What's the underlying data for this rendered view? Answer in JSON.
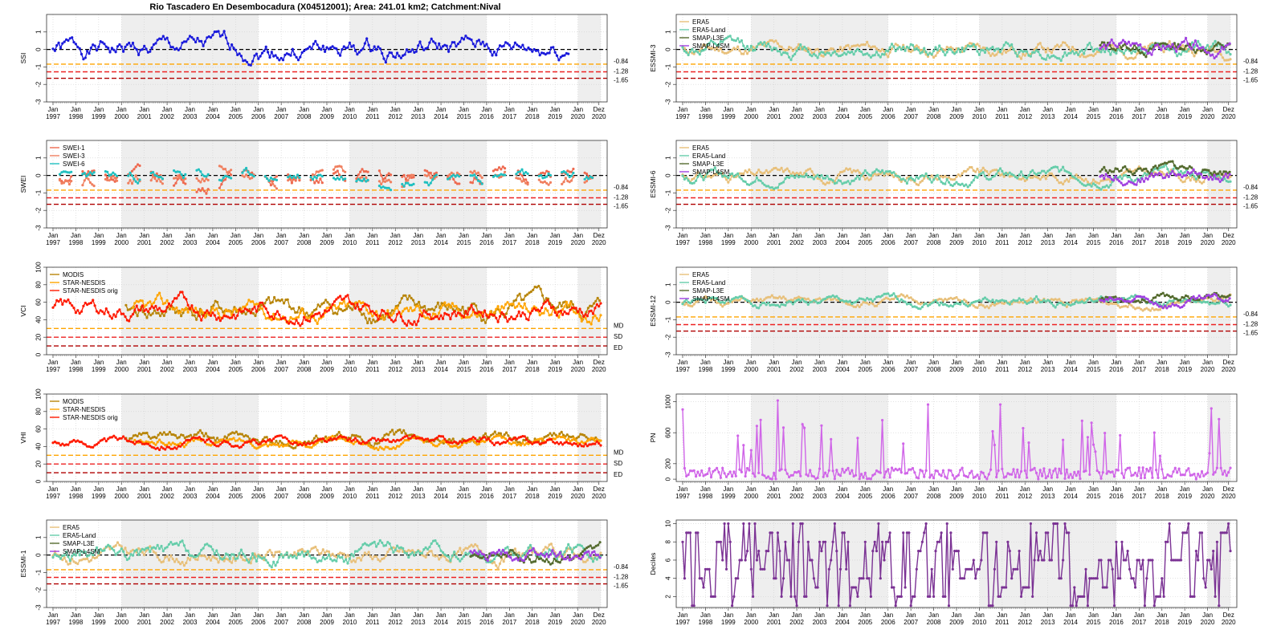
{
  "title": "Rio Tascadero En Desembocadura (X04512001); Area: 241.01 km2; Catchment:Nival",
  "colors": {
    "ssi": "#1a1adb",
    "swei1": "#ee6a50",
    "swei3": "#f08060",
    "swei6": "#20c0c0",
    "modis": "#b8860b",
    "star": "#ffa500",
    "star_orig": "#ff1a00",
    "era5": "#e8c07a",
    "era5land": "#66cdaa",
    "l3e": "#556b2f",
    "l4sm": "#a040e0",
    "pn": "#d065e8",
    "deciles": "#7b3294",
    "thr1": "#ffa500",
    "thr2": "#ee2222",
    "thr3": "#b00000",
    "zero": "#000000",
    "shade": "#eeeeee"
  },
  "x_axis": {
    "labels_top": [
      "Jan",
      "Jan",
      "Jan",
      "Jan",
      "Jan",
      "Jan",
      "Jan",
      "Jan",
      "Jan",
      "Jan",
      "Jan",
      "Jan",
      "Jan",
      "Jan",
      "Jan",
      "Jan",
      "Jan",
      "Jan",
      "Jan",
      "Jan",
      "Jan",
      "Jan",
      "Jan",
      "Jan",
      "Dez"
    ],
    "labels_bottom": [
      "1997",
      "1998",
      "1999",
      "2000",
      "2001",
      "2002",
      "2003",
      "2004",
      "2005",
      "2006",
      "2007",
      "2008",
      "2009",
      "2010",
      "2011",
      "2012",
      "2013",
      "2014",
      "2015",
      "2016",
      "2017",
      "2018",
      "2019",
      "2020",
      "2020"
    ],
    "shaded_periods": [
      [
        2000,
        2006
      ],
      [
        2010,
        2016
      ],
      [
        2020,
        2021
      ]
    ]
  },
  "chart_data": [
    {
      "id": "ssi",
      "type": "line",
      "ylabel": "SSI",
      "ylim": [
        -3,
        2
      ],
      "yticks": [
        -3,
        -2,
        -1,
        0,
        1
      ],
      "thresholds": [
        {
          "v": -0.84,
          "label": "-0.84"
        },
        {
          "v": -1.28,
          "label": "-1.28"
        },
        {
          "v": -1.65,
          "label": "-1.65"
        }
      ],
      "legend": [],
      "series": [
        {
          "key": "ssi",
          "color": "ssi",
          "start": 1997.0,
          "end": 2019.6,
          "mean": 0,
          "amp": 1.2,
          "seed": 1
        }
      ]
    },
    {
      "id": "esmi3",
      "type": "line",
      "ylabel": "ESSMI-3",
      "ylim": [
        -3,
        2
      ],
      "yticks": [
        -3,
        -2,
        -1,
        0,
        1
      ],
      "thresholds": [
        {
          "v": -0.84,
          "label": "-0.84"
        },
        {
          "v": -1.28,
          "label": "-1.28"
        },
        {
          "v": -1.65,
          "label": "-1.65"
        }
      ],
      "legend": [
        "ERA5",
        "ERA5-Land",
        "SMAP-L3E",
        "SMAP-L4SM"
      ],
      "series": [
        {
          "key": "era5",
          "color": "era5",
          "start": 1997.0,
          "end": 2021.0,
          "mean": 0,
          "amp": 0.8,
          "seed": 11
        },
        {
          "key": "era5land",
          "color": "era5land",
          "start": 1997.0,
          "end": 2021.0,
          "mean": 0,
          "amp": 0.9,
          "seed": 12
        },
        {
          "key": "l3e",
          "color": "l3e",
          "start": 2015.3,
          "end": 2021.0,
          "mean": 0.2,
          "amp": 0.8,
          "seed": 13
        },
        {
          "key": "l4sm",
          "color": "l4sm",
          "start": 2015.3,
          "end": 2021.0,
          "mean": 0.1,
          "amp": 0.9,
          "seed": 14
        }
      ]
    },
    {
      "id": "swei",
      "type": "line",
      "ylabel": "SWEI",
      "ylim": [
        -3,
        2
      ],
      "yticks": [
        -3,
        -2,
        -1,
        0,
        1
      ],
      "thresholds": [
        {
          "v": -0.84,
          "label": "-0.84"
        },
        {
          "v": -1.28,
          "label": "-1.28"
        },
        {
          "v": -1.65,
          "label": "-1.65"
        }
      ],
      "legend": [
        "SWEI-1",
        "SWEI-3",
        "SWEI-6"
      ],
      "series": [
        {
          "key": "swei1",
          "color": "swei1",
          "start": 1997.3,
          "end": 2020.6,
          "mean": -0.1,
          "amp": 0.9,
          "seed": 21,
          "seasonal": true
        },
        {
          "key": "swei3",
          "color": "swei3",
          "start": 1997.3,
          "end": 2020.6,
          "mean": -0.1,
          "amp": 0.8,
          "seed": 22,
          "seasonal": true
        },
        {
          "key": "swei6",
          "color": "swei6",
          "start": 1997.3,
          "end": 2020.6,
          "mean": -0.1,
          "amp": 0.7,
          "seed": 23,
          "seasonal": true
        }
      ]
    },
    {
      "id": "esmi6",
      "type": "line",
      "ylabel": "ESSMI-6",
      "ylim": [
        -3,
        2
      ],
      "yticks": [
        -3,
        -2,
        -1,
        0,
        1
      ],
      "thresholds": [
        {
          "v": -0.84,
          "label": "-0.84"
        },
        {
          "v": -1.28,
          "label": "-1.28"
        },
        {
          "v": -1.65,
          "label": "-1.65"
        }
      ],
      "legend": [
        "ERA5",
        "ERA5-Land",
        "SMAP-L3E",
        "SMAP-L4SM"
      ],
      "series": [
        {
          "key": "era5",
          "color": "era5",
          "start": 1997.0,
          "end": 2021.0,
          "mean": 0,
          "amp": 0.7,
          "seed": 31
        },
        {
          "key": "era5land",
          "color": "era5land",
          "start": 1997.0,
          "end": 2021.0,
          "mean": 0,
          "amp": 0.75,
          "seed": 32
        },
        {
          "key": "l3e",
          "color": "l3e",
          "start": 2015.3,
          "end": 2021.0,
          "mean": 0.3,
          "amp": 0.7,
          "seed": 33
        },
        {
          "key": "l4sm",
          "color": "l4sm",
          "start": 2015.3,
          "end": 2021.0,
          "mean": 0.1,
          "amp": 0.8,
          "seed": 34
        }
      ]
    },
    {
      "id": "vci",
      "type": "line",
      "ylabel": "VCI",
      "ylim": [
        0,
        100
      ],
      "yticks": [
        0,
        20,
        40,
        60,
        80,
        100
      ],
      "thresholds": [
        {
          "v": 30,
          "label": "MD"
        },
        {
          "v": 20,
          "label": "SD"
        },
        {
          "v": 10,
          "label": "ED"
        }
      ],
      "legend": [
        "MODIS",
        "STAR-NESDIS",
        "STAR-NESDIS orig"
      ],
      "series": [
        {
          "key": "modis",
          "color": "modis",
          "start": 2000.2,
          "end": 2021.0,
          "mean": 50,
          "amp": 25,
          "seed": 41
        },
        {
          "key": "star",
          "color": "star",
          "start": 2000.5,
          "end": 2021.0,
          "mean": 50,
          "amp": 22,
          "seed": 42
        },
        {
          "key": "star_orig",
          "color": "star_orig",
          "start": 1997.0,
          "end": 2021.0,
          "mean": 52,
          "amp": 22,
          "seed": 43
        }
      ]
    },
    {
      "id": "esmi12",
      "type": "line",
      "ylabel": "ESSMI-12",
      "ylim": [
        -3,
        2
      ],
      "yticks": [
        -3,
        -2,
        -1,
        0,
        1
      ],
      "thresholds": [
        {
          "v": -0.84,
          "label": "-0.84"
        },
        {
          "v": -1.28,
          "label": "-1.28"
        },
        {
          "v": -1.65,
          "label": "-1.65"
        }
      ],
      "legend": [
        "ERA5",
        "ERA5-Land",
        "SMAP-L3E",
        "SMAP-L4SM"
      ],
      "series": [
        {
          "key": "era5",
          "color": "era5",
          "start": 1997.0,
          "end": 2021.0,
          "mean": 0,
          "amp": 0.5,
          "seed": 51
        },
        {
          "key": "era5land",
          "color": "era5land",
          "start": 1997.0,
          "end": 2021.0,
          "mean": 0,
          "amp": 0.55,
          "seed": 52
        },
        {
          "key": "l3e",
          "color": "l3e",
          "start": 2015.3,
          "end": 2021.0,
          "mean": 0.3,
          "amp": 0.5,
          "seed": 53
        },
        {
          "key": "l4sm",
          "color": "l4sm",
          "start": 2015.3,
          "end": 2021.0,
          "mean": 0.0,
          "amp": 0.6,
          "seed": 54
        }
      ]
    },
    {
      "id": "vhi",
      "type": "line",
      "ylabel": "VHI",
      "ylim": [
        0,
        100
      ],
      "yticks": [
        0,
        20,
        40,
        60,
        80,
        100
      ],
      "thresholds": [
        {
          "v": 30,
          "label": "MD"
        },
        {
          "v": 20,
          "label": "SD"
        },
        {
          "v": 10,
          "label": "ED"
        }
      ],
      "legend": [
        "MODIS",
        "STAR-NESDIS",
        "STAR-NESDIS orig"
      ],
      "series": [
        {
          "key": "modis",
          "color": "modis",
          "start": 2000.2,
          "end": 2021.0,
          "mean": 48,
          "amp": 14,
          "seed": 61
        },
        {
          "key": "star",
          "color": "star",
          "start": 2000.5,
          "end": 2021.0,
          "mean": 45,
          "amp": 10,
          "seed": 62
        },
        {
          "key": "star_orig",
          "color": "star_orig",
          "start": 1997.0,
          "end": 2021.0,
          "mean": 45,
          "amp": 10,
          "seed": 63
        }
      ]
    },
    {
      "id": "pn",
      "type": "line",
      "ylabel": "PN",
      "ylim": [
        -30,
        1100
      ],
      "yticks": [
        0,
        200,
        600,
        1000
      ],
      "thresholds": [],
      "legend": [],
      "series": [
        {
          "key": "pn",
          "color": "pn",
          "start": 1997.0,
          "end": 2021.0,
          "mean": 90,
          "amp": 100,
          "seed": 71,
          "positive": true
        }
      ]
    },
    {
      "id": "esmi1",
      "type": "line",
      "ylabel": "ESSMI-1",
      "ylim": [
        -3,
        2
      ],
      "yticks": [
        -3,
        -2,
        -1,
        0,
        1
      ],
      "thresholds": [
        {
          "v": -0.84,
          "label": "-0.84"
        },
        {
          "v": -1.28,
          "label": "-1.28"
        },
        {
          "v": -1.65,
          "label": "-1.65"
        }
      ],
      "legend": [
        "ERA5",
        "ERA5-Land",
        "SMAP-L3E",
        "SMAP-L4SM"
      ],
      "series": [
        {
          "key": "era5",
          "color": "era5",
          "start": 1997.0,
          "end": 2021.0,
          "mean": 0,
          "amp": 0.9,
          "seed": 81
        },
        {
          "key": "era5land",
          "color": "era5land",
          "start": 1997.0,
          "end": 2021.0,
          "mean": 0,
          "amp": 1.0,
          "seed": 82
        },
        {
          "key": "l3e",
          "color": "l3e",
          "start": 2015.3,
          "end": 2021.0,
          "mean": 0.1,
          "amp": 0.8,
          "seed": 83
        },
        {
          "key": "l4sm",
          "color": "l4sm",
          "start": 2015.3,
          "end": 2021.0,
          "mean": 0.0,
          "amp": 0.9,
          "seed": 84
        }
      ]
    },
    {
      "id": "deciles",
      "type": "line",
      "ylabel": "Deciles",
      "ylim": [
        0.8,
        10.4
      ],
      "yticks": [
        2,
        4,
        6,
        8,
        10
      ],
      "thresholds": [],
      "legend": [],
      "series": [
        {
          "key": "deciles",
          "color": "deciles",
          "start": 1997.0,
          "end": 2021.0,
          "mean": 5,
          "amp": 4,
          "seed": 91,
          "deciles": true
        }
      ]
    }
  ]
}
